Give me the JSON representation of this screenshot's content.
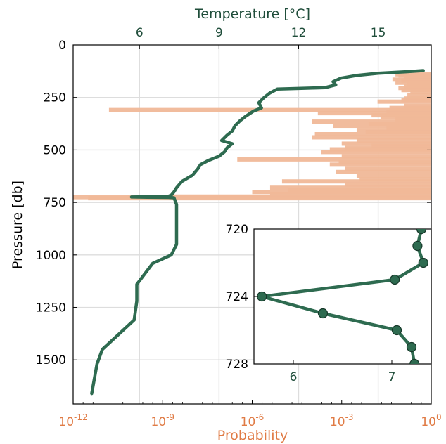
{
  "chart_data": {
    "type": "line",
    "colors": {
      "temperature": "#2e6b50",
      "probability": "#f0b898",
      "probability_axis": "#e07b45",
      "grid": "#dddddd"
    },
    "axes": {
      "top_x": {
        "label": "Temperature [$^\\circ$C]",
        "label_display": "Temperature [°C]",
        "range": [
          3.5,
          17
        ],
        "ticks": [
          6,
          9,
          12,
          15
        ],
        "tick_labels": [
          "6",
          "9",
          "12",
          "15"
        ]
      },
      "bottom_x": {
        "label": "Probability",
        "scale": "log",
        "range_exponent": [
          -12,
          0
        ],
        "ticks": [
          -12,
          -9,
          -6,
          -3,
          0
        ],
        "tick_bases": [
          "10",
          "10",
          "10",
          "10",
          "10"
        ],
        "tick_exps": [
          "-12",
          "-9",
          "-6",
          "-3",
          "0"
        ]
      },
      "y": {
        "label": "Pressure [db]",
        "inverted": true,
        "range": [
          0,
          1710
        ],
        "ticks": [
          0,
          250,
          500,
          750,
          1000,
          1250,
          1500
        ],
        "tick_labels": [
          "0",
          "250",
          "500",
          "750",
          "1000",
          "1250",
          "1500"
        ]
      }
    },
    "grid": true,
    "temperature_profile": [
      [
        16.7,
        122
      ],
      [
        16.0,
        128
      ],
      [
        15.0,
        135
      ],
      [
        14.2,
        145
      ],
      [
        13.6,
        158
      ],
      [
        13.3,
        175
      ],
      [
        13.4,
        190
      ],
      [
        13.0,
        203
      ],
      [
        12.0,
        207
      ],
      [
        11.2,
        210
      ],
      [
        10.9,
        230
      ],
      [
        10.7,
        250
      ],
      [
        10.5,
        275
      ],
      [
        10.6,
        300
      ],
      [
        10.3,
        315
      ],
      [
        10.0,
        340
      ],
      [
        9.8,
        360
      ],
      [
        9.6,
        385
      ],
      [
        9.5,
        410
      ],
      [
        9.3,
        430
      ],
      [
        9.1,
        455
      ],
      [
        9.5,
        470
      ],
      [
        9.3,
        490
      ],
      [
        9.2,
        510
      ],
      [
        9.0,
        530
      ],
      [
        8.6,
        550
      ],
      [
        8.3,
        570
      ],
      [
        8.2,
        590
      ],
      [
        8.0,
        620
      ],
      [
        7.6,
        650
      ],
      [
        7.4,
        680
      ],
      [
        7.3,
        700
      ],
      [
        7.2,
        715
      ],
      [
        7.1,
        720
      ],
      [
        7.0,
        722
      ],
      [
        5.7,
        724
      ],
      [
        6.3,
        725
      ],
      [
        7.1,
        726
      ],
      [
        7.3,
        728
      ],
      [
        7.4,
        760
      ],
      [
        7.4,
        900
      ],
      [
        7.4,
        950
      ],
      [
        7.2,
        1000
      ],
      [
        6.5,
        1040
      ],
      [
        5.9,
        1140
      ],
      [
        5.9,
        1220
      ],
      [
        5.8,
        1310
      ],
      [
        4.6,
        1450
      ],
      [
        4.4,
        1520
      ],
      [
        4.2,
        1660
      ]
    ],
    "probability_bars": [
      [
        140,
        -1.2
      ],
      [
        145,
        -1.1
      ],
      [
        155,
        -0.9
      ],
      [
        165,
        -1.3
      ],
      [
        170,
        -1.0
      ],
      [
        180,
        -1.2
      ],
      [
        190,
        -0.8
      ],
      [
        197,
        -0.9
      ],
      [
        205,
        -1.1
      ],
      [
        215,
        -1.0
      ],
      [
        225,
        -0.7
      ],
      [
        240,
        -0.8
      ],
      [
        255,
        -0.9
      ],
      [
        262,
        -1.0
      ],
      [
        270,
        -1.8
      ],
      [
        290,
        -0.9
      ],
      [
        300,
        -1.4
      ],
      [
        310,
        -10.8
      ],
      [
        318,
        -1.5
      ],
      [
        325,
        -3.8
      ],
      [
        335,
        -2.0
      ],
      [
        345,
        -1.7
      ],
      [
        355,
        -1.2
      ],
      [
        365,
        -4.0
      ],
      [
        375,
        -2.1
      ],
      [
        385,
        -3.3
      ],
      [
        395,
        -1.5
      ],
      [
        405,
        -2.5
      ],
      [
        415,
        -2.2
      ],
      [
        425,
        -3.9
      ],
      [
        440,
        -4.0
      ],
      [
        455,
        -2.5
      ],
      [
        470,
        -3.0
      ],
      [
        480,
        -2.0
      ],
      [
        490,
        -2.9
      ],
      [
        497,
        -3.4
      ],
      [
        510,
        -3.7
      ],
      [
        530,
        -3.0
      ],
      [
        545,
        -6.5
      ],
      [
        560,
        -3.1
      ],
      [
        570,
        -3.4
      ],
      [
        590,
        -2.9
      ],
      [
        605,
        -3.2
      ],
      [
        625,
        -2.5
      ],
      [
        640,
        -2.4
      ],
      [
        650,
        -5.0
      ],
      [
        665,
        -2.9
      ],
      [
        680,
        -5.4
      ],
      [
        690,
        -4.8
      ],
      [
        700,
        -6.0
      ],
      [
        710,
        -5.4
      ],
      [
        722,
        -8.7
      ],
      [
        725,
        -12.0
      ],
      [
        730,
        -11.5
      ]
    ],
    "inset": {
      "x_range": [
        5.6,
        7.4
      ],
      "y_range": [
        720,
        728
      ],
      "x_ticks": [
        6,
        7
      ],
      "x_tick_labels": [
        "6",
        "7"
      ],
      "y_ticks": [
        720,
        724,
        728
      ],
      "y_tick_labels": [
        "720",
        "724",
        "728"
      ],
      "points": [
        [
          7.3,
          720.0
        ],
        [
          7.26,
          721.0
        ],
        [
          7.32,
          722.0
        ],
        [
          7.03,
          723.0
        ],
        [
          5.68,
          724.0
        ],
        [
          6.3,
          725.0
        ],
        [
          7.05,
          726.0
        ],
        [
          7.2,
          727.0
        ],
        [
          7.23,
          728.0
        ]
      ]
    }
  }
}
